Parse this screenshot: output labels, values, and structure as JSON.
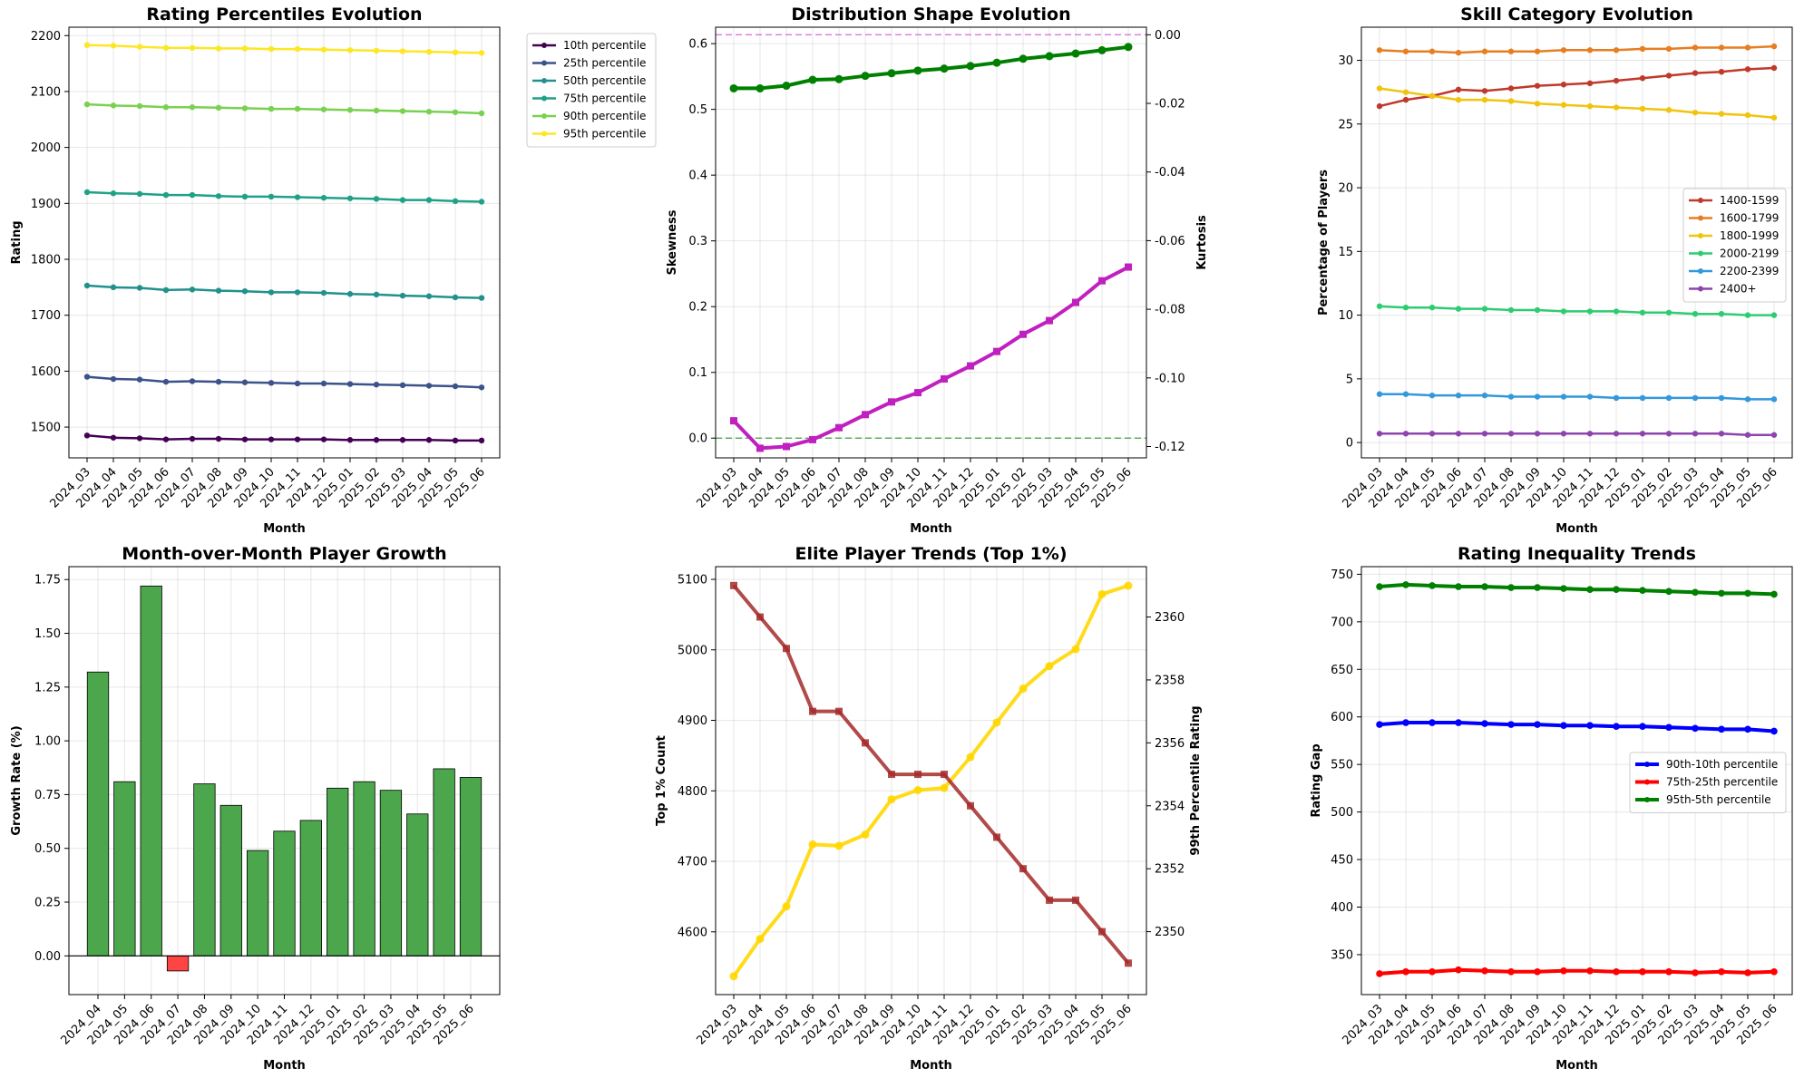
{
  "months": [
    "2024_03",
    "2024_04",
    "2024_05",
    "2024_06",
    "2024_07",
    "2024_08",
    "2024_09",
    "2024_10",
    "2024_11",
    "2024_12",
    "2025_01",
    "2025_02",
    "2025_03",
    "2025_04",
    "2025_05",
    "2025_06"
  ],
  "colors": {
    "green": "#008000",
    "magenta": "#c020c0",
    "bar_positive": "#4ca64c",
    "bar_negative": "#ff4444",
    "gold": "#ffd700",
    "brown": "#a52a2a",
    "blue": "#0000ff",
    "red": "#ff0000"
  },
  "chart_data": [
    {
      "id": "percentiles",
      "type": "line",
      "title": "Rating Percentiles Evolution",
      "xlabel": "Month",
      "ylabel": "Rating",
      "ylim": [
        1445,
        2215
      ],
      "yticks": [
        1500,
        1600,
        1700,
        1800,
        1900,
        2000,
        2100,
        2200
      ],
      "grid": true,
      "legend": "outside-upper-right",
      "series": [
        {
          "name": "10th percentile",
          "color": "#440154",
          "values": [
            1485,
            1481,
            1480,
            1478,
            1479,
            1479,
            1478,
            1478,
            1478,
            1478,
            1477,
            1477,
            1477,
            1477,
            1476,
            1476
          ]
        },
        {
          "name": "25th percentile",
          "color": "#3b528b",
          "values": [
            1590,
            1586,
            1585,
            1581,
            1582,
            1581,
            1580,
            1579,
            1578,
            1578,
            1577,
            1576,
            1575,
            1574,
            1573,
            1571
          ]
        },
        {
          "name": "50th percentile",
          "color": "#21918c",
          "values": [
            1753,
            1750,
            1749,
            1745,
            1746,
            1744,
            1743,
            1741,
            1741,
            1740,
            1738,
            1737,
            1735,
            1734,
            1732,
            1731
          ]
        },
        {
          "name": "75th percentile",
          "color": "#1fa187",
          "values": [
            1920,
            1918,
            1917,
            1915,
            1915,
            1913,
            1912,
            1912,
            1911,
            1910,
            1909,
            1908,
            1906,
            1906,
            1904,
            1903
          ]
        },
        {
          "name": "90th percentile",
          "color": "#7ad151",
          "values": [
            2077,
            2075,
            2074,
            2072,
            2072,
            2071,
            2070,
            2069,
            2069,
            2068,
            2067,
            2066,
            2065,
            2064,
            2063,
            2061
          ]
        },
        {
          "name": "95th percentile",
          "color": "#fde725",
          "values": [
            2183,
            2182,
            2180,
            2178,
            2178,
            2177,
            2177,
            2176,
            2176,
            2175,
            2174,
            2173,
            2172,
            2171,
            2170,
            2169
          ]
        }
      ]
    },
    {
      "id": "shape",
      "type": "line",
      "title": "Distribution Shape Evolution",
      "xlabel": "Month",
      "ylabel": "Skewness",
      "ylim": [
        -0.03,
        0.625
      ],
      "yticks": [
        0.0,
        0.1,
        0.2,
        0.3,
        0.4,
        0.5,
        0.6
      ],
      "y2label": "Kurtosis",
      "y2lim": [
        -0.1233,
        0.0022
      ],
      "y2ticks": [
        0.0,
        -0.02,
        -0.04,
        -0.06,
        -0.08,
        -0.1,
        -0.12
      ],
      "grid": true,
      "hlines": [
        {
          "axis": "left",
          "y": 0.0,
          "color": "#008000"
        },
        {
          "axis": "right",
          "y": 0.0,
          "color": "#c020c0"
        }
      ],
      "series": [
        {
          "name": "Skewness",
          "axis": "left",
          "color": "#008000",
          "marker": "circle",
          "values": [
            0.532,
            0.532,
            0.536,
            0.545,
            0.546,
            0.551,
            0.555,
            0.559,
            0.562,
            0.566,
            0.571,
            0.577,
            0.581,
            0.585,
            0.59,
            0.595
          ]
        },
        {
          "name": "Kurtosis",
          "axis": "right",
          "color": "#c020c0",
          "marker": "square",
          "values": [
            -0.1125,
            -0.1205,
            -0.12,
            -0.118,
            -0.1145,
            -0.1107,
            -0.107,
            -0.1043,
            -0.1003,
            -0.0965,
            -0.0923,
            -0.0873,
            -0.0833,
            -0.078,
            -0.0717,
            -0.0677
          ]
        }
      ]
    },
    {
      "id": "skill",
      "type": "line",
      "title": "Skill Category Evolution",
      "xlabel": "Month",
      "ylabel": "Percentage of Players",
      "ylim": [
        -1.2,
        32.6
      ],
      "yticks": [
        0,
        5,
        10,
        15,
        20,
        25,
        30
      ],
      "grid": true,
      "legend": "center-right",
      "series": [
        {
          "name": "1400-1599",
          "color": "#c0392b",
          "values": [
            26.4,
            26.9,
            27.2,
            27.7,
            27.6,
            27.8,
            28.0,
            28.1,
            28.2,
            28.4,
            28.6,
            28.8,
            29.0,
            29.1,
            29.3,
            29.4
          ]
        },
        {
          "name": "1600-1799",
          "color": "#e67e22",
          "values": [
            30.8,
            30.7,
            30.7,
            30.6,
            30.7,
            30.7,
            30.7,
            30.8,
            30.8,
            30.8,
            30.9,
            30.9,
            31.0,
            31.0,
            31.0,
            31.1
          ]
        },
        {
          "name": "1800-1999",
          "color": "#f1c40f",
          "values": [
            27.8,
            27.5,
            27.2,
            26.9,
            26.9,
            26.8,
            26.6,
            26.5,
            26.4,
            26.3,
            26.2,
            26.1,
            25.9,
            25.8,
            25.7,
            25.5
          ]
        },
        {
          "name": "2000-2199",
          "color": "#2ecc71",
          "values": [
            10.7,
            10.6,
            10.6,
            10.5,
            10.5,
            10.4,
            10.4,
            10.3,
            10.3,
            10.3,
            10.2,
            10.2,
            10.1,
            10.1,
            10.0,
            10.0
          ]
        },
        {
          "name": "2200-2399",
          "color": "#3498db",
          "values": [
            3.8,
            3.8,
            3.7,
            3.7,
            3.7,
            3.6,
            3.6,
            3.6,
            3.6,
            3.5,
            3.5,
            3.5,
            3.5,
            3.5,
            3.4,
            3.4
          ]
        },
        {
          "name": "2400+",
          "color": "#8e44ad",
          "values": [
            0.7,
            0.7,
            0.7,
            0.7,
            0.7,
            0.7,
            0.7,
            0.7,
            0.7,
            0.7,
            0.7,
            0.7,
            0.7,
            0.7,
            0.6,
            0.6
          ]
        }
      ]
    },
    {
      "id": "growth",
      "type": "bar",
      "title": "Month-over-Month Player Growth",
      "xlabel": "Month",
      "ylabel": "Growth Rate (%)",
      "ylim": [
        -0.18,
        1.81
      ],
      "yticks": [
        0.0,
        0.25,
        0.5,
        0.75,
        1.0,
        1.25,
        1.5,
        1.75
      ],
      "grid": true,
      "categories": [
        "2024_04",
        "2024_05",
        "2024_06",
        "2024_07",
        "2024_08",
        "2024_09",
        "2024_10",
        "2024_11",
        "2024_12",
        "2025_01",
        "2025_02",
        "2025_03",
        "2025_04",
        "2025_05",
        "2025_06"
      ],
      "values": [
        1.32,
        0.81,
        1.72,
        -0.07,
        0.8,
        0.7,
        0.49,
        0.58,
        0.63,
        0.78,
        0.81,
        0.77,
        0.66,
        0.87,
        0.83
      ]
    },
    {
      "id": "elite",
      "type": "line",
      "title": "Elite Player Trends (Top 1%)",
      "xlabel": "Month",
      "ylabel": "Top 1% Count",
      "ylim": [
        4511,
        5118
      ],
      "yticks": [
        4600,
        4700,
        4800,
        4900,
        5000,
        5100
      ],
      "y2label": "99th Percentile Rating",
      "y2lim": [
        2348.0,
        2361.6
      ],
      "y2ticks": [
        2350,
        2352,
        2354,
        2356,
        2358,
        2360
      ],
      "grid": true,
      "series": [
        {
          "name": "Top 1% Count",
          "axis": "left",
          "color": "#ffd700",
          "marker": "circle",
          "values": [
            4537,
            4590,
            4636,
            4724,
            4722,
            4738,
            4788,
            4801,
            4804,
            4848,
            4897,
            4945,
            4977,
            5001,
            5079,
            5091
          ]
        },
        {
          "name": "99th Percentile Rating",
          "axis": "right",
          "color": "#a52a2a",
          "marker": "square",
          "values": [
            2361,
            2360,
            2359,
            2357,
            2357,
            2356,
            2355,
            2355,
            2355,
            2354,
            2353,
            2352,
            2351,
            2351,
            2350,
            2349
          ]
        }
      ]
    },
    {
      "id": "inequality",
      "type": "line",
      "title": "Rating Inequality Trends",
      "xlabel": "Month",
      "ylabel": "Rating Gap",
      "ylim": [
        308,
        758
      ],
      "yticks": [
        350,
        400,
        450,
        500,
        550,
        600,
        650,
        700,
        750
      ],
      "grid": true,
      "legend": "center-right",
      "series": [
        {
          "name": "90th-10th percentile",
          "color": "#0000ff",
          "values": [
            592,
            594,
            594,
            594,
            593,
            592,
            592,
            591,
            591,
            590,
            590,
            589,
            588,
            587,
            587,
            585
          ]
        },
        {
          "name": "75th-25th percentile",
          "color": "#ff0000",
          "values": [
            330,
            332,
            332,
            334,
            333,
            332,
            332,
            333,
            333,
            332,
            332,
            332,
            331,
            332,
            331,
            332
          ]
        },
        {
          "name": "95th-5th percentile",
          "color": "#008000",
          "values": [
            737,
            739,
            738,
            737,
            737,
            736,
            736,
            735,
            734,
            734,
            733,
            732,
            731,
            730,
            730,
            729
          ]
        }
      ]
    }
  ]
}
